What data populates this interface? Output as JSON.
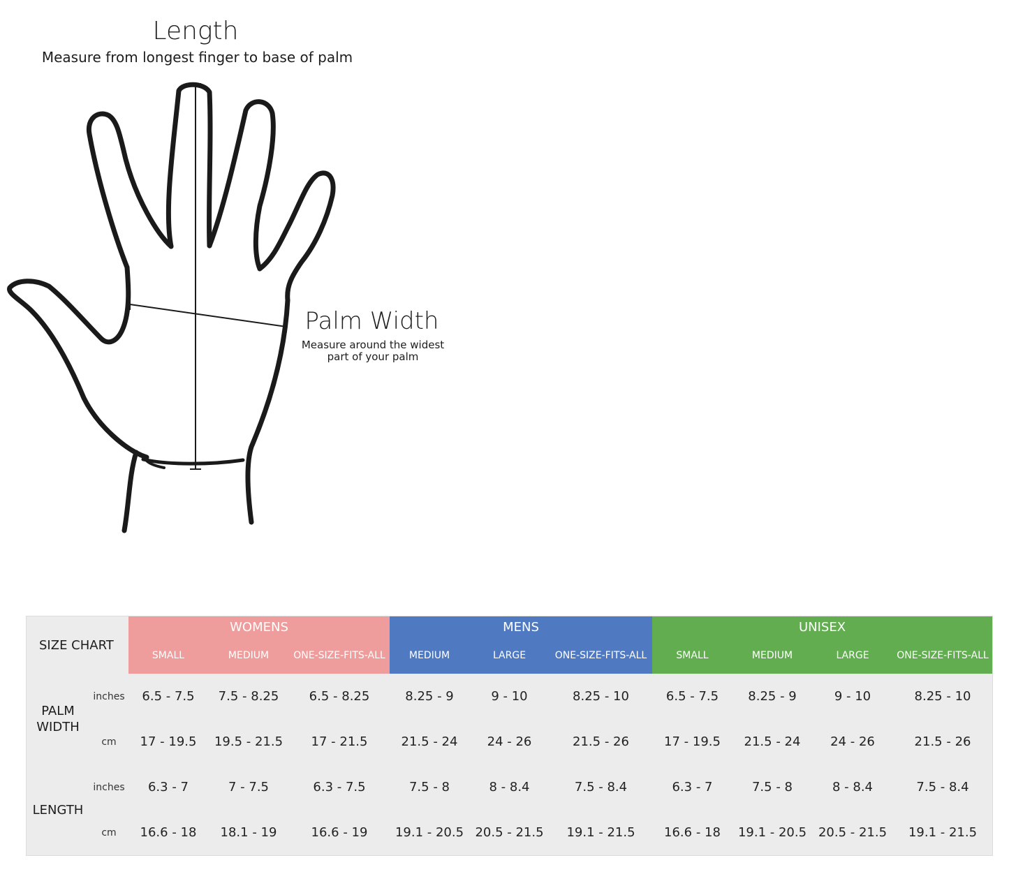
{
  "diagram": {
    "length_title": "Length",
    "length_subtitle": "Measure from longest finger to base of palm",
    "palm_width_title": "Palm Width",
    "palm_width_subtitle_line1": "Measure around the widest",
    "palm_width_subtitle_line2": "part of your palm"
  },
  "size_chart": {
    "corner_label": "SIZE CHART",
    "colors": {
      "womens": "#ee9c9c",
      "mens": "#4f79c0",
      "unisex": "#61ad50"
    },
    "groups": [
      {
        "name": "WOMENS",
        "sizes": [
          "SMALL",
          "MEDIUM",
          "ONE-SIZE-FITS-ALL"
        ]
      },
      {
        "name": "MENS",
        "sizes": [
          "MEDIUM",
          "LARGE",
          "ONE-SIZE-FITS-ALL"
        ]
      },
      {
        "name": "UNISEX",
        "sizes": [
          "SMALL",
          "MEDIUM",
          "LARGE",
          "ONE-SIZE-FITS-ALL"
        ]
      }
    ],
    "measurements": [
      {
        "label_line1": "PALM",
        "label_line2": "WIDTH",
        "rows": [
          {
            "unit": "inches",
            "values": [
              "6.5 - 7.5",
              "7.5 - 8.25",
              "6.5 - 8.25",
              "8.25 - 9",
              "9 - 10",
              "8.25 - 10",
              "6.5 - 7.5",
              "8.25 - 9",
              "9 - 10",
              "8.25 - 10"
            ]
          },
          {
            "unit": "cm",
            "values": [
              "17 - 19.5",
              "19.5 - 21.5",
              "17 - 21.5",
              "21.5 - 24",
              "24 - 26",
              "21.5 - 26",
              "17 - 19.5",
              "21.5 - 24",
              "24 - 26",
              "21.5 - 26"
            ]
          }
        ]
      },
      {
        "label_line1": "LENGTH",
        "label_line2": "",
        "rows": [
          {
            "unit": "inches",
            "values": [
              "6.3 - 7",
              "7 - 7.5",
              "6.3 - 7.5",
              "7.5 - 8",
              "8 - 8.4",
              "7.5 - 8.4",
              "6.3 - 7",
              "7.5 - 8",
              "8 - 8.4",
              "7.5 - 8.4"
            ]
          },
          {
            "unit": "cm",
            "values": [
              "16.6 - 18",
              "18.1 - 19",
              "16.6 - 19",
              "19.1 - 20.5",
              "20.5 - 21.5",
              "19.1 - 21.5",
              "16.6 - 18",
              "19.1 - 20.5",
              "20.5 - 21.5",
              "19.1 - 21.5"
            ]
          }
        ]
      }
    ]
  }
}
